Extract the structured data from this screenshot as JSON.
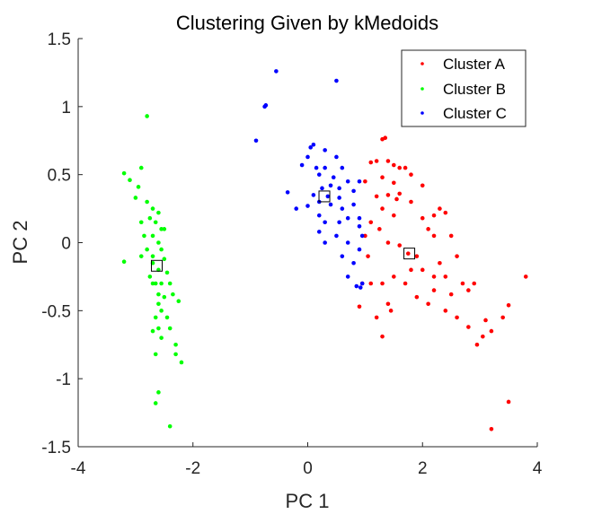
{
  "chart_data": {
    "type": "scatter",
    "title": "Clustering Given by kMedoids",
    "xlabel": "PC 1",
    "ylabel": "PC 2",
    "xlim": [
      -4,
      4
    ],
    "ylim": [
      -1.5,
      1.5
    ],
    "xticks": [
      "-4",
      "-2",
      "0",
      "2",
      "4"
    ],
    "yticks": [
      "1.5",
      "1",
      "0.5",
      "0",
      "-0.5",
      "-1",
      "-1.5"
    ],
    "grid": false,
    "legend_position": "top-right",
    "series": [
      {
        "name": "Cluster A",
        "color": "#ff0000",
        "points": [
          [
            1.3,
            0.76
          ],
          [
            1.35,
            0.77
          ],
          [
            1.2,
            0.6
          ],
          [
            1.4,
            0.6
          ],
          [
            1.5,
            0.57
          ],
          [
            1.1,
            0.59
          ],
          [
            1.6,
            0.55
          ],
          [
            1.8,
            0.5
          ],
          [
            1.7,
            0.55
          ],
          [
            1.3,
            0.48
          ],
          [
            1.0,
            0.45
          ],
          [
            1.5,
            0.44
          ],
          [
            2.0,
            0.42
          ],
          [
            1.6,
            0.36
          ],
          [
            1.4,
            0.35
          ],
          [
            1.2,
            0.34
          ],
          [
            1.8,
            0.3
          ],
          [
            1.55,
            0.32
          ],
          [
            1.3,
            0.25
          ],
          [
            1.5,
            0.2
          ],
          [
            1.1,
            0.15
          ],
          [
            1.25,
            0.1
          ],
          [
            1.0,
            0.05
          ],
          [
            1.4,
            0.0
          ],
          [
            1.6,
            -0.02
          ],
          [
            1.05,
            -0.1
          ],
          [
            1.75,
            -0.08
          ],
          [
            1.9,
            -0.1
          ],
          [
            2.0,
            0.18
          ],
          [
            2.2,
            0.2
          ],
          [
            2.3,
            0.25
          ],
          [
            2.4,
            0.22
          ],
          [
            2.1,
            0.1
          ],
          [
            2.5,
            0.05
          ],
          [
            2.6,
            -0.1
          ],
          [
            2.3,
            -0.15
          ],
          [
            2.0,
            -0.2
          ],
          [
            2.4,
            -0.25
          ],
          [
            2.7,
            -0.3
          ],
          [
            2.8,
            -0.35
          ],
          [
            2.2,
            -0.35
          ],
          [
            2.5,
            -0.38
          ],
          [
            2.9,
            -0.3
          ],
          [
            1.8,
            -0.2
          ],
          [
            1.9,
            -0.4
          ],
          [
            2.1,
            -0.45
          ],
          [
            1.5,
            -0.25
          ],
          [
            1.3,
            -0.3
          ],
          [
            1.1,
            -0.3
          ],
          [
            1.4,
            -0.45
          ],
          [
            1.2,
            -0.55
          ],
          [
            0.95,
            -0.3
          ],
          [
            0.9,
            -0.47
          ],
          [
            1.45,
            -0.5
          ],
          [
            2.4,
            -0.5
          ],
          [
            2.6,
            -0.55
          ],
          [
            3.1,
            -0.57
          ],
          [
            2.8,
            -0.62
          ],
          [
            3.2,
            -0.65
          ],
          [
            3.5,
            -0.46
          ],
          [
            3.4,
            -0.55
          ],
          [
            3.8,
            -0.25
          ],
          [
            3.05,
            -0.69
          ],
          [
            2.95,
            -0.75
          ],
          [
            1.3,
            -0.69
          ],
          [
            3.5,
            -1.17
          ],
          [
            3.2,
            -1.37
          ],
          [
            2.2,
            0.05
          ],
          [
            1.7,
            -0.3
          ],
          [
            2.2,
            -0.25
          ]
        ]
      },
      {
        "name": "Cluster B",
        "color": "#00ff00",
        "points": [
          [
            -2.8,
            0.93
          ],
          [
            -3.2,
            0.51
          ],
          [
            -3.1,
            0.46
          ],
          [
            -2.9,
            0.55
          ],
          [
            -2.95,
            0.41
          ],
          [
            -3.0,
            0.33
          ],
          [
            -2.8,
            0.3
          ],
          [
            -2.7,
            0.25
          ],
          [
            -2.6,
            0.22
          ],
          [
            -2.75,
            0.18
          ],
          [
            -2.9,
            0.15
          ],
          [
            -2.65,
            0.15
          ],
          [
            -2.5,
            0.1
          ],
          [
            -2.85,
            0.05
          ],
          [
            -2.7,
            0.05
          ],
          [
            -2.6,
            0.0
          ],
          [
            -2.8,
            -0.05
          ],
          [
            -2.55,
            -0.05
          ],
          [
            -2.9,
            -0.1
          ],
          [
            -3.2,
            -0.14
          ],
          [
            -2.7,
            -0.15
          ],
          [
            -2.5,
            -0.12
          ],
          [
            -2.6,
            -0.2
          ],
          [
            -2.45,
            -0.22
          ],
          [
            -2.75,
            -0.25
          ],
          [
            -2.65,
            -0.3
          ],
          [
            -2.55,
            -0.3
          ],
          [
            -2.4,
            -0.3
          ],
          [
            -2.6,
            -0.38
          ],
          [
            -2.5,
            -0.4
          ],
          [
            -2.35,
            -0.38
          ],
          [
            -2.25,
            -0.43
          ],
          [
            -2.6,
            -0.45
          ],
          [
            -2.55,
            -0.5
          ],
          [
            -2.65,
            -0.55
          ],
          [
            -2.45,
            -0.55
          ],
          [
            -2.6,
            -0.63
          ],
          [
            -2.4,
            -0.63
          ],
          [
            -2.7,
            -0.65
          ],
          [
            -2.55,
            -0.7
          ],
          [
            -2.3,
            -0.75
          ],
          [
            -2.65,
            -0.82
          ],
          [
            -2.3,
            -0.82
          ],
          [
            -2.2,
            -0.88
          ],
          [
            -2.6,
            -1.1
          ],
          [
            -2.65,
            -1.18
          ],
          [
            -2.4,
            -1.35
          ],
          [
            -2.7,
            -0.3
          ],
          [
            -2.7,
            -0.1
          ],
          [
            -2.55,
            0.1
          ]
        ]
      },
      {
        "name": "Cluster C",
        "color": "#0000ff",
        "points": [
          [
            -0.55,
            1.26
          ],
          [
            0.5,
            1.19
          ],
          [
            -0.75,
            1.0
          ],
          [
            -0.73,
            1.01
          ],
          [
            -0.9,
            0.75
          ],
          [
            0.1,
            0.72
          ],
          [
            0.05,
            0.7
          ],
          [
            0.3,
            0.68
          ],
          [
            0.0,
            0.63
          ],
          [
            0.5,
            0.63
          ],
          [
            -0.1,
            0.57
          ],
          [
            0.15,
            0.55
          ],
          [
            0.3,
            0.55
          ],
          [
            0.6,
            0.55
          ],
          [
            0.2,
            0.5
          ],
          [
            0.45,
            0.48
          ],
          [
            0.7,
            0.45
          ],
          [
            0.9,
            0.45
          ],
          [
            0.4,
            0.42
          ],
          [
            0.25,
            0.4
          ],
          [
            0.55,
            0.4
          ],
          [
            0.8,
            0.38
          ],
          [
            -0.35,
            0.37
          ],
          [
            0.1,
            0.35
          ],
          [
            0.35,
            0.34
          ],
          [
            0.55,
            0.33
          ],
          [
            0.2,
            0.3
          ],
          [
            0.4,
            0.28
          ],
          [
            0.8,
            0.28
          ],
          [
            0.0,
            0.27
          ],
          [
            -0.2,
            0.25
          ],
          [
            0.6,
            0.25
          ],
          [
            0.2,
            0.2
          ],
          [
            0.7,
            0.18
          ],
          [
            0.9,
            0.18
          ],
          [
            0.3,
            0.15
          ],
          [
            0.55,
            0.15
          ],
          [
            0.9,
            0.12
          ],
          [
            0.2,
            0.08
          ],
          [
            0.5,
            0.05
          ],
          [
            0.95,
            0.05
          ],
          [
            0.3,
            0.0
          ],
          [
            0.7,
            0.0
          ],
          [
            0.9,
            -0.05
          ],
          [
            0.6,
            -0.1
          ],
          [
            0.8,
            -0.15
          ],
          [
            0.7,
            -0.25
          ],
          [
            0.95,
            -0.3
          ],
          [
            0.85,
            -0.32
          ],
          [
            0.92,
            -0.33
          ]
        ]
      }
    ],
    "medoids": [
      {
        "cluster": "Cluster A",
        "x": 1.77,
        "y": -0.08
      },
      {
        "cluster": "Cluster B",
        "x": -2.63,
        "y": -0.17
      },
      {
        "cluster": "Cluster C",
        "x": 0.29,
        "y": 0.34
      }
    ]
  }
}
